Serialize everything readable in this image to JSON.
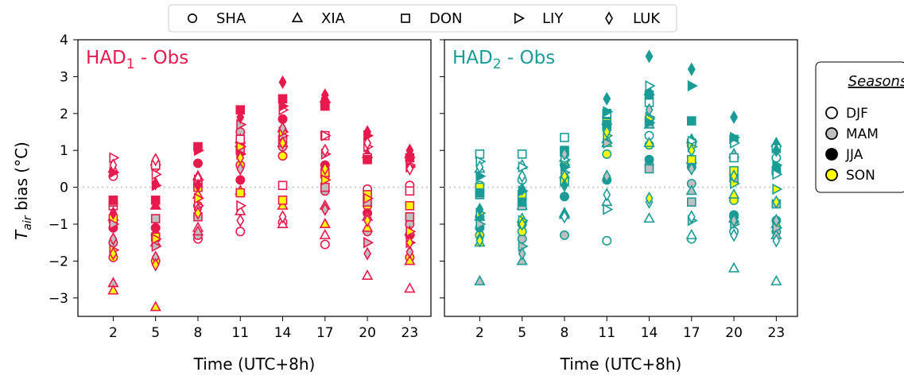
{
  "chart_data": {
    "type": "scatter",
    "ylabel_main": "T",
    "ylabel_sub": "air",
    "ylabel_rest": " bias (°C)",
    "xlabel": "Time (UTC+8h)",
    "x_ticks": [
      2,
      5,
      8,
      11,
      14,
      17,
      20,
      23
    ],
    "y_ticks": [
      -3,
      -2,
      -1,
      0,
      1,
      2,
      3,
      4
    ],
    "ylim": [
      -3.5,
      4
    ],
    "xlim": [
      -0.5,
      24.5
    ],
    "grid": false,
    "zero_line": "dotted grey",
    "legend_position": "top-center",
    "stations": [
      {
        "name": "SHA",
        "marker": "circle"
      },
      {
        "name": "XIA",
        "marker": "triangle-up"
      },
      {
        "name": "DON",
        "marker": "square"
      },
      {
        "name": "LIY",
        "marker": "triangle-right"
      },
      {
        "name": "LUK",
        "marker": "thin-diamond"
      }
    ],
    "seasons_title": "Seasons",
    "seasons": [
      {
        "name": "DJF",
        "fill": "#ffffff"
      },
      {
        "name": "MAM",
        "fill": "#bfbfbf"
      },
      {
        "name": "JJA",
        "fill": "solid"
      },
      {
        "name": "SON",
        "fill": "#ffff00"
      }
    ],
    "panels": [
      {
        "title_main": "HAD",
        "title_sub": "1",
        "title_rest": " - Obs",
        "color": "#e8194d",
        "points": {
          "2": {
            "SHA": {
              "DJF": 0.3,
              "MAM": -1.5,
              "JJA": -1.1,
              "SON": -1.9
            },
            "XIA": {
              "DJF": 0.5,
              "MAM": -2.6,
              "JJA": -0.8,
              "SON": -2.8
            },
            "DON": {
              "DJF": -0.5,
              "MAM": -0.4,
              "JJA": -0.35,
              "SON": -0.85
            },
            "LIY": {
              "DJF": 0.8,
              "MAM": -1.0,
              "JJA": 0.4,
              "SON": -1.7
            },
            "LUK": {
              "DJF": 0.6,
              "MAM": -1.4,
              "JJA": -0.7,
              "SON": -1.8
            }
          },
          "5": {
            "SHA": {
              "DJF": 0.55,
              "MAM": -1.3,
              "JJA": -1.1,
              "SON": -2.0
            },
            "XIA": {
              "DJF": 0.7,
              "MAM": -1.5,
              "JJA": -0.5,
              "SON": -3.25
            },
            "DON": {
              "DJF": 0.6,
              "MAM": -0.85,
              "JJA": -0.35,
              "SON": -1.35
            },
            "LIY": {
              "DJF": 0.35,
              "MAM": -1.6,
              "JJA": 0.05,
              "SON": -1.4
            },
            "LUK": {
              "DJF": 0.75,
              "MAM": -1.9,
              "JJA": 0.1,
              "SON": -2.1
            }
          },
          "8": {
            "SHA": {
              "DJF": -1.4,
              "MAM": -1.3,
              "JJA": 0.65,
              "SON": -0.5
            },
            "XIA": {
              "DJF": -1.1,
              "MAM": -1.2,
              "JJA": 0.3,
              "SON": -0.2
            },
            "DON": {
              "DJF": 0.1,
              "MAM": -0.8,
              "JJA": 1.1,
              "SON": 0.0
            },
            "LIY": {
              "DJF": -0.5,
              "MAM": 0.2,
              "JJA": 1.0,
              "SON": -0.3
            },
            "LUK": {
              "DJF": 0.25,
              "MAM": -0.6,
              "JJA": 0.05,
              "SON": -0.7
            }
          },
          "11": {
            "SHA": {
              "DJF": -1.2,
              "MAM": 1.5,
              "JJA": 0.2,
              "SON": 0.6
            },
            "XIA": {
              "DJF": -0.65,
              "MAM": 1.3,
              "JJA": 1.2,
              "SON": -0.1
            },
            "DON": {
              "DJF": 1.3,
              "MAM": 1.0,
              "JJA": 2.1,
              "SON": -0.15
            },
            "LIY": {
              "DJF": -0.5,
              "MAM": 1.7,
              "JJA": 0.9,
              "SON": 1.1
            },
            "LUK": {
              "DJF": -0.9,
              "MAM": 0.5,
              "JJA": 1.9,
              "SON": 0.8
            }
          },
          "14": {
            "SHA": {
              "DJF": -0.95,
              "MAM": 1.1,
              "JJA": 1.85,
              "SON": 0.85
            },
            "XIA": {
              "DJF": -1.0,
              "MAM": 1.2,
              "JJA": 1.6,
              "SON": -0.5
            },
            "DON": {
              "DJF": 0.05,
              "MAM": 1.3,
              "JJA": 2.4,
              "SON": -0.35
            },
            "LIY": {
              "DJF": 2.1,
              "MAM": 1.4,
              "JJA": 2.2,
              "SON": 1.5
            },
            "LUK": {
              "DJF": -0.8,
              "MAM": 1.6,
              "JJA": 2.85,
              "SON": 1.2
            }
          },
          "17": {
            "SHA": {
              "DJF": -1.55,
              "MAM": -0.1,
              "JJA": 0.6,
              "SON": 0.3
            },
            "XIA": {
              "DJF": -1.3,
              "MAM": -0.5,
              "JJA": 2.4,
              "SON": -1.0
            },
            "DON": {
              "DJF": 1.4,
              "MAM": 0.0,
              "JJA": 2.2,
              "SON": 0.4
            },
            "LIY": {
              "DJF": 1.4,
              "MAM": 0.9,
              "JJA": 2.3,
              "SON": 0.2
            },
            "LUK": {
              "DJF": 1.0,
              "MAM": -0.6,
              "JJA": 2.5,
              "SON": 0.5
            }
          },
          "20": {
            "SHA": {
              "DJF": -0.05,
              "MAM": -1.2,
              "JJA": -0.7,
              "SON": -0.5
            },
            "XIA": {
              "DJF": -2.4,
              "MAM": -0.8,
              "JJA": 0.9,
              "SON": -1.1
            },
            "DON": {
              "DJF": 0.8,
              "MAM": -0.4,
              "JJA": 0.75,
              "SON": -0.2
            },
            "LIY": {
              "DJF": 1.1,
              "MAM": -1.5,
              "JJA": 1.4,
              "SON": -0.3
            },
            "LUK": {
              "DJF": 1.2,
              "MAM": -1.8,
              "JJA": 1.5,
              "SON": -0.9
            }
          },
          "23": {
            "SHA": {
              "DJF": 0.05,
              "MAM": -1.0,
              "JJA": -1.3,
              "SON": -1.9
            },
            "XIA": {
              "DJF": -2.75,
              "MAM": -1.2,
              "JJA": 0.9,
              "SON": -2.0
            },
            "DON": {
              "DJF": -0.1,
              "MAM": -0.8,
              "JJA": 0.8,
              "SON": -0.5
            },
            "LIY": {
              "DJF": 0.6,
              "MAM": -1.5,
              "JJA": 0.55,
              "SON": -1.2
            },
            "LUK": {
              "DJF": 0.5,
              "MAM": -1.75,
              "JJA": 1.0,
              "SON": -1.5
            }
          }
        }
      },
      {
        "title_main": "HAD",
        "title_sub": "2",
        "title_rest": " - Obs",
        "color": "#1a9b96",
        "points": {
          "2": {
            "SHA": {
              "DJF": 0.05,
              "MAM": -0.8,
              "JJA": -1.1,
              "SON": -1.3
            },
            "XIA": {
              "DJF": 0.5,
              "MAM": -2.55,
              "JJA": -0.8,
              "SON": -1.5
            },
            "DON": {
              "DJF": 0.9,
              "MAM": -0.2,
              "JJA": -0.15,
              "SON": 0.0
            },
            "LIY": {
              "DJF": 0.7,
              "MAM": -1.0,
              "JJA": 0.3,
              "SON": -0.7
            },
            "LUK": {
              "DJF": 0.55,
              "MAM": -1.4,
              "JJA": -0.6,
              "SON": -1.45
            }
          },
          "5": {
            "SHA": {
              "DJF": 0.2,
              "MAM": -1.4,
              "JJA": -1.0,
              "SON": -1.2
            },
            "XIA": {
              "DJF": 0.6,
              "MAM": -2.0,
              "JJA": -0.5,
              "SON": -0.85
            },
            "DON": {
              "DJF": 0.9,
              "MAM": -0.5,
              "JJA": -0.4,
              "SON": -0.2
            },
            "LIY": {
              "DJF": 0.55,
              "MAM": -1.6,
              "JJA": -0.1,
              "SON": -0.9
            },
            "LUK": {
              "DJF": 0.3,
              "MAM": -1.8,
              "JJA": -0.05,
              "SON": -1.0
            }
          },
          "8": {
            "SHA": {
              "DJF": 0.2,
              "MAM": -1.3,
              "JJA": -0.25,
              "SON": 0.6
            },
            "XIA": {
              "DJF": -0.7,
              "MAM": -0.75,
              "JJA": 0.35,
              "SON": 0.8
            },
            "DON": {
              "DJF": 1.35,
              "MAM": 0.95,
              "JJA": 1.0,
              "SON": 0.15
            },
            "LIY": {
              "DJF": 0.75,
              "MAM": 0.4,
              "JJA": 0.55,
              "SON": 0.6
            },
            "LUK": {
              "DJF": -0.8,
              "MAM": 0.9,
              "JJA": 0.05,
              "SON": 0.3
            }
          },
          "11": {
            "SHA": {
              "DJF": -1.45,
              "MAM": 1.9,
              "JJA": 0.2,
              "SON": 0.9
            },
            "XIA": {
              "DJF": -0.4,
              "MAM": 1.3,
              "JJA": 1.8,
              "SON": 1.2
            },
            "DON": {
              "DJF": 2.0,
              "MAM": 1.65,
              "JJA": 1.7,
              "SON": 1.75
            },
            "LIY": {
              "DJF": -0.6,
              "MAM": 1.2,
              "JJA": 2.05,
              "SON": 1.4
            },
            "LUK": {
              "DJF": -0.2,
              "MAM": 0.3,
              "JJA": 2.4,
              "SON": 1.5
            }
          },
          "14": {
            "SHA": {
              "DJF": 1.4,
              "MAM": 0.6,
              "JJA": 0.75,
              "SON": 1.15
            },
            "XIA": {
              "DJF": -0.85,
              "MAM": 1.7,
              "JJA": 2.6,
              "SON": 1.2
            },
            "DON": {
              "DJF": 2.3,
              "MAM": 0.5,
              "JJA": 2.5,
              "SON": 1.8
            },
            "LIY": {
              "DJF": 2.75,
              "MAM": 1.9,
              "JJA": 1.75,
              "SON": 1.85
            },
            "LUK": {
              "DJF": -0.4,
              "MAM": 2.1,
              "JJA": 3.55,
              "SON": -0.3
            }
          },
          "17": {
            "SHA": {
              "DJF": -1.4,
              "MAM": 0.1,
              "JJA": 0.55,
              "SON": 0.65
            },
            "XIA": {
              "DJF": -1.3,
              "MAM": -0.1,
              "JJA": 1.3,
              "SON": 0.75
            },
            "DON": {
              "DJF": 1.2,
              "MAM": -0.4,
              "JJA": 1.8,
              "SON": 0.75
            },
            "LIY": {
              "DJF": 1.25,
              "MAM": -0.9,
              "JJA": 2.75,
              "SON": 1.1
            },
            "LUK": {
              "DJF": -0.8,
              "MAM": 0.5,
              "JJA": 3.2,
              "SON": 1.0
            }
          },
          "20": {
            "SHA": {
              "DJF": -1.2,
              "MAM": -0.8,
              "JJA": -0.75,
              "SON": -0.35
            },
            "XIA": {
              "DJF": -2.2,
              "MAM": 0.9,
              "JJA": -0.85,
              "SON": -0.2
            },
            "DON": {
              "DJF": 0.8,
              "MAM": 0.25,
              "JJA": 1.3,
              "SON": 0.45
            },
            "LIY": {
              "DJF": 1.2,
              "MAM": -1.0,
              "JJA": 1.35,
              "SON": 0.1
            },
            "LUK": {
              "DJF": -1.3,
              "MAM": -0.9,
              "JJA": 1.9,
              "SON": 0.3
            }
          },
          "23": {
            "SHA": {
              "DJF": 0.8,
              "MAM": -1.2,
              "JJA": -0.9,
              "SON": 0.4
            },
            "XIA": {
              "DJF": -2.55,
              "MAM": -1.3,
              "JJA": 1.2,
              "SON": -1.0
            },
            "DON": {
              "DJF": 1.05,
              "MAM": -0.45,
              "JJA": 0.45,
              "SON": 0.45
            },
            "LIY": {
              "DJF": 0.35,
              "MAM": -1.1,
              "JJA": 0.6,
              "SON": -0.05
            },
            "LUK": {
              "DJF": -1.45,
              "MAM": -0.9,
              "JJA": 1.0,
              "SON": -0.4
            }
          }
        }
      }
    ]
  }
}
